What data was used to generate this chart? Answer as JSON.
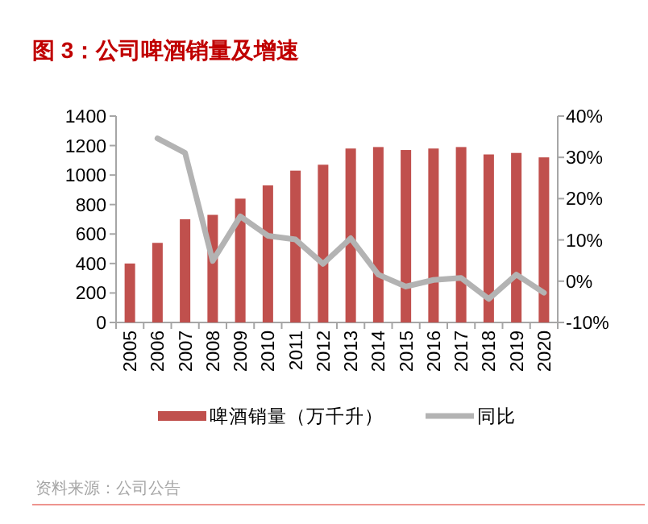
{
  "chart_data": {
    "type": "bar",
    "title": "图 3：公司啤酒销量及增速",
    "categories": [
      "2005",
      "2006",
      "2007",
      "2008",
      "2009",
      "2010",
      "2011",
      "2012",
      "2013",
      "2014",
      "2015",
      "2016",
      "2017",
      "2018",
      "2019",
      "2020"
    ],
    "series": [
      {
        "name": "啤酒销量（万千升）",
        "color": "#c0504d",
        "values": [
          400,
          540,
          700,
          730,
          840,
          930,
          1030,
          1070,
          1180,
          1190,
          1170,
          1180,
          1190,
          1140,
          1150,
          1120
        ]
      },
      {
        "name": "同比",
        "type": "line",
        "axis": "y2",
        "color": "#b3b3b3",
        "values": [
          null,
          34.6,
          31.1,
          4.9,
          15.7,
          11.0,
          10.1,
          4.2,
          10.4,
          1.6,
          -1.3,
          0.3,
          0.8,
          -4.3,
          1.6,
          -2.8
        ]
      }
    ],
    "ylim": [
      0,
      1400
    ],
    "yticks": [
      0,
      200,
      400,
      600,
      800,
      1000,
      1200,
      1400
    ],
    "y2lim": [
      -10,
      40
    ],
    "y2ticks": [
      {
        "value": -10,
        "label": "-10%"
      },
      {
        "value": 0,
        "label": "0%"
      },
      {
        "value": 10,
        "label": "10%"
      },
      {
        "value": 20,
        "label": "20%"
      },
      {
        "value": 30,
        "label": "30%"
      },
      {
        "value": 40,
        "label": "40%"
      }
    ],
    "legend": "bottom",
    "grid": false,
    "annotations": [
      "资料来源：公司公告"
    ]
  }
}
